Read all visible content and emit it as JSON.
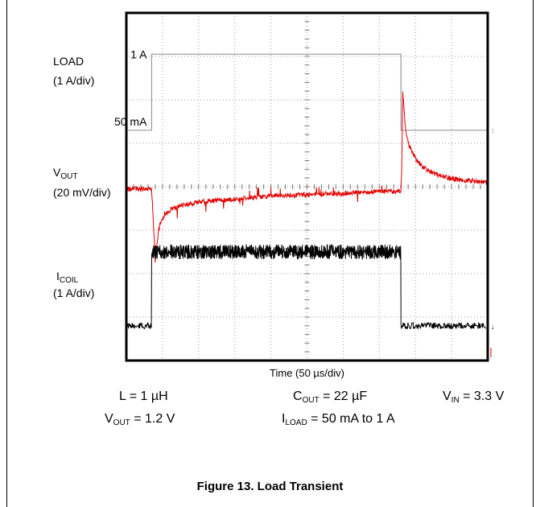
{
  "chart_data": {
    "type": "line",
    "xlabel": "Time (50 µs/div)",
    "x_divisions": 10,
    "y_divisions": 8,
    "grid": true,
    "series": [
      {
        "name": "LOAD",
        "label": "LOAD",
        "scale": "(1 A/div)",
        "color": "#999999",
        "level_labels": [
          "1 A",
          "50 mA"
        ],
        "x": [
          0,
          0.7,
          0.7,
          7.6,
          7.6,
          10
        ],
        "y": [
          1.3,
          1.3,
          3.05,
          3.05,
          1.3,
          1.3
        ]
      },
      {
        "label_main": "V",
        "label_sub": "OUT",
        "scale": "(20 mV/div)",
        "color": "#e00000",
        "x": [
          0,
          0.69,
          0.72,
          0.8,
          0.85,
          0.9,
          1.0,
          1.1,
          1.3,
          1.6,
          2.0,
          2.5,
          3.0,
          4.0,
          5.0,
          6.0,
          7.0,
          7.6,
          7.62,
          7.65,
          7.72,
          7.8,
          8.0,
          8.2,
          8.5,
          9.0,
          10
        ],
        "y": [
          -0.05,
          -0.05,
          -0.35,
          -1.7,
          -1.3,
          -0.95,
          -0.75,
          -0.6,
          -0.5,
          -0.42,
          -0.35,
          -0.32,
          -0.28,
          -0.22,
          -0.18,
          -0.15,
          -0.12,
          -0.1,
          0.4,
          2.2,
          1.4,
          1.0,
          0.65,
          0.45,
          0.3,
          0.18,
          0.1
        ]
      },
      {
        "label_main": "I",
        "label_sub": "COIL",
        "scale": "(1 A/div)",
        "color": "#000000",
        "x": [
          0,
          0.7,
          0.7,
          7.6,
          7.6,
          10
        ],
        "y": [
          -3.2,
          -3.2,
          -1.5,
          -1.5,
          -3.2,
          -3.2
        ]
      }
    ]
  },
  "conditions": {
    "l": "L = 1 µH",
    "cout_main": "C",
    "cout_sub": "OUT",
    "cout_val": " = 22 µF",
    "vin_main": "V",
    "vin_sub": "IN",
    "vin_val": " = 3.3 V",
    "vout_main": "V",
    "vout_sub": "OUT",
    "vout_val": " = 1.2 V",
    "iload_main": "I",
    "iload_sub": "LOAD",
    "iload_val": " = 50 mA to 1 A"
  },
  "caption": "Figure 13. Load Transient"
}
